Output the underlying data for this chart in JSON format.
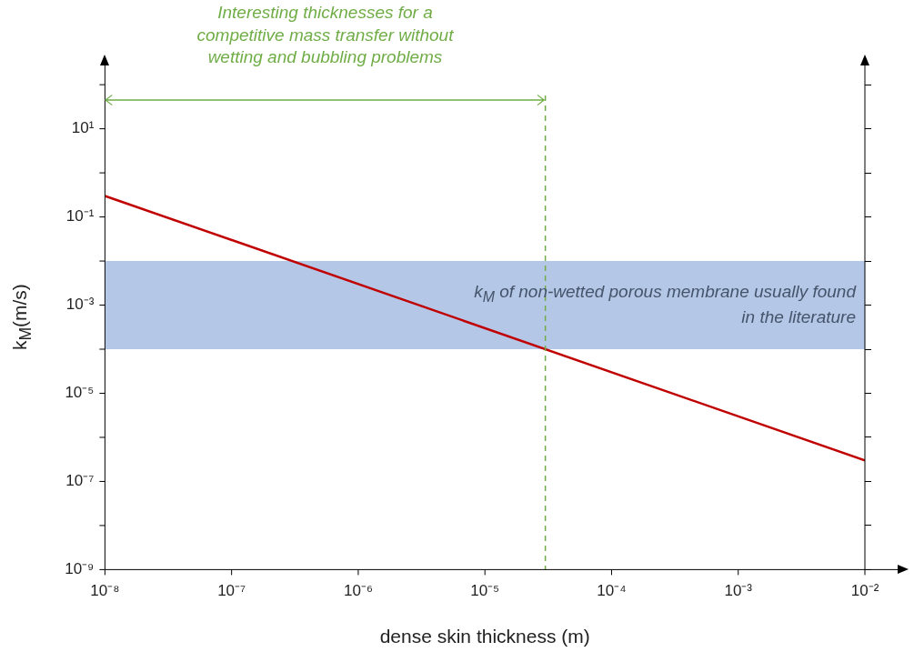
{
  "chart_data": {
    "type": "line",
    "xlabel": "dense skin thickness (m)",
    "ylabel": "k$_{M}$(m/s)",
    "log": "xy",
    "grid": false,
    "legend": false,
    "marker": "none",
    "line_style": "solid",
    "xlim": [
      1e-08,
      0.01
    ],
    "ylim": [
      1e-09,
      300
    ],
    "xticks": [
      {
        "value": 1e-08,
        "label": "10⁻⁸"
      },
      {
        "value": 1e-07,
        "label": "10⁻⁷"
      },
      {
        "value": 1e-06,
        "label": "10⁻⁶"
      },
      {
        "value": 1e-05,
        "label": "10⁻⁵"
      },
      {
        "value": 0.0001,
        "label": "10⁻⁴"
      },
      {
        "value": 0.001,
        "label": "10⁻³"
      },
      {
        "value": 0.01,
        "label": "10⁻²"
      }
    ],
    "yticks": [
      {
        "value": 1e-09,
        "label": "10⁻⁹"
      },
      {
        "value": 1e-08,
        "label": null
      },
      {
        "value": 1e-07,
        "label": "10⁻⁷"
      },
      {
        "value": 1e-06,
        "label": null
      },
      {
        "value": 1e-05,
        "label": "10⁻⁵"
      },
      {
        "value": 0.0001,
        "label": null
      },
      {
        "value": 0.001,
        "label": "10⁻³"
      },
      {
        "value": 0.01,
        "label": null
      },
      {
        "value": 0.1,
        "label": "10⁻¹"
      },
      {
        "value": 1,
        "label": null
      },
      {
        "value": 10,
        "label": "10¹"
      },
      {
        "value": 100,
        "label": null
      }
    ],
    "series": [
      {
        "type": "line",
        "color": "#c00000",
        "x": [
          1e-08,
          0.01
        ],
        "values": [
          0.3,
          3e-07
        ]
      }
    ],
    "ref_lines": [
      {
        "axis": "x",
        "value": 3e-05,
        "color": "#70ad47",
        "line_style": "dashed"
      }
    ],
    "bands": [
      {
        "axis": "y",
        "from": 0.0001,
        "to": 0.01,
        "color": "#b4c7e7",
        "label": "k$_{M}$ of non-wetted porous membrane usually found in the literature"
      }
    ],
    "annotations": [
      "Interesting thicknesses for a competitive mass transfer without wetting and bubbling problems"
    ]
  }
}
